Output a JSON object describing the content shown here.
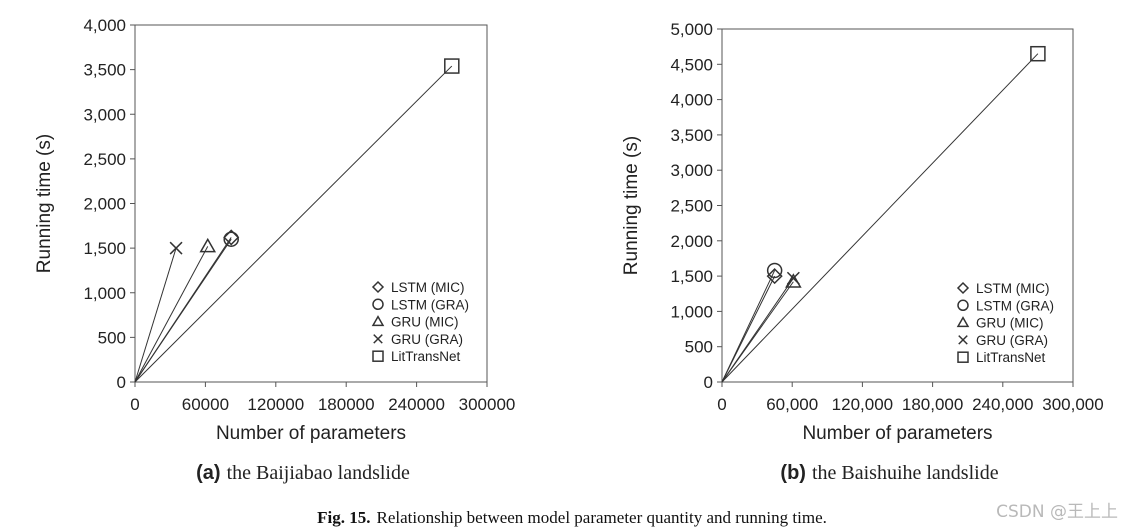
{
  "chart_data": [
    {
      "type": "scatter",
      "panel_label": "(a)",
      "panel_title": "the Baijiabao landslide",
      "xlabel": "Number of parameters",
      "ylabel": "Running time (s)",
      "xlim": [
        0,
        300000
      ],
      "ylim": [
        0,
        4000
      ],
      "x_ticks": [
        0,
        60000,
        120000,
        180000,
        240000,
        300000
      ],
      "x_tick_labels": [
        "0",
        "60000",
        "120000",
        "180000",
        "240000",
        "300000"
      ],
      "y_ticks": [
        0,
        500,
        1000,
        1500,
        2000,
        2500,
        3000,
        3500,
        4000
      ],
      "y_tick_labels": [
        "0",
        "500",
        "1,000",
        "1,500",
        "2,000",
        "2,500",
        "3,000",
        "3,500",
        "4,000"
      ],
      "grid": false,
      "lines_from_origin": true,
      "legend_position": "bottom-right",
      "series": [
        {
          "name": "LSTM (MIC)",
          "marker": "diamond",
          "x": 82000,
          "y": 1620
        },
        {
          "name": "LSTM (GRA)",
          "marker": "circle",
          "x": 82000,
          "y": 1600
        },
        {
          "name": "GRU (MIC)",
          "marker": "triangle",
          "x": 62000,
          "y": 1520
        },
        {
          "name": "GRU (GRA)",
          "marker": "x",
          "x": 35000,
          "y": 1500
        },
        {
          "name": "LitTransNet",
          "marker": "square",
          "x": 270000,
          "y": 3540
        }
      ]
    },
    {
      "type": "scatter",
      "panel_label": "(b)",
      "panel_title": "the Baishuihe landslide",
      "xlabel": "Number of parameters",
      "ylabel": "Running time (s)",
      "xlim": [
        0,
        300000
      ],
      "ylim": [
        0,
        5000
      ],
      "x_ticks": [
        0,
        60000,
        120000,
        180000,
        240000,
        300000
      ],
      "x_tick_labels": [
        "0",
        "60,000",
        "120,000",
        "180,000",
        "240,000",
        "300,000"
      ],
      "y_ticks": [
        0,
        500,
        1000,
        1500,
        2000,
        2500,
        3000,
        3500,
        4000,
        4500,
        5000
      ],
      "y_tick_labels": [
        "0",
        "500",
        "1,000",
        "1,500",
        "2,000",
        "2,500",
        "3,000",
        "3,500",
        "4,000",
        "4,500",
        "5,000"
      ],
      "grid": false,
      "lines_from_origin": true,
      "legend_position": "bottom-right",
      "series": [
        {
          "name": "LSTM (MIC)",
          "marker": "diamond",
          "x": 45000,
          "y": 1500
        },
        {
          "name": "LSTM (GRA)",
          "marker": "circle",
          "x": 45000,
          "y": 1580
        },
        {
          "name": "GRU (MIC)",
          "marker": "triangle",
          "x": 61000,
          "y": 1420
        },
        {
          "name": "GRU (GRA)",
          "marker": "x",
          "x": 61000,
          "y": 1470
        },
        {
          "name": "LitTransNet",
          "marker": "square",
          "x": 270000,
          "y": 4650
        }
      ]
    }
  ],
  "caption": {
    "label": "Fig. 15.",
    "text": "Relationship between model parameter quantity and running time."
  },
  "watermark": "CSDN @王上上",
  "colors": {
    "ink": "#333333",
    "watermark": "#b9b9b9"
  }
}
